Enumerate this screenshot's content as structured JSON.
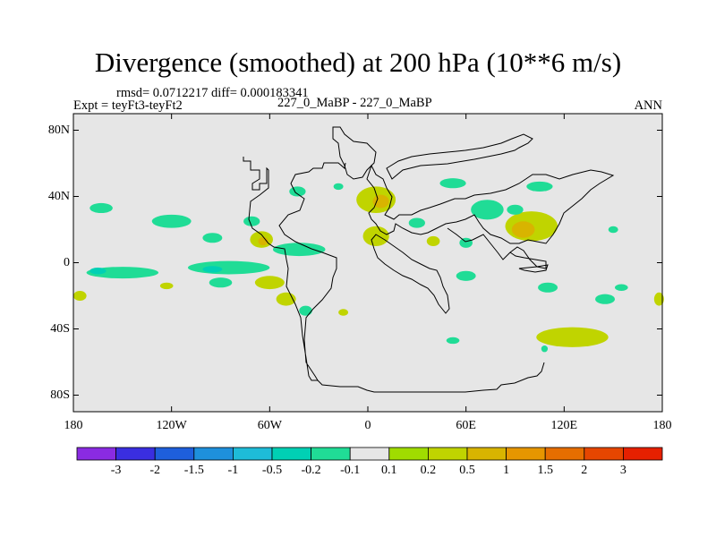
{
  "chart_data": {
    "type": "heatmap",
    "title": "Divergence (smoothed) at 200 hPa (10**6 m/s)",
    "stats": "rmsd= 0.0712217 diff= 0.000183341",
    "experiment": "Expt = teyFt3-teyFt2",
    "case": "227_0_MaBP - 227_0_MaBP",
    "season": "ANN",
    "x_range": [
      -180,
      180
    ],
    "y_range": [
      -90,
      90
    ],
    "x_ticks": [
      {
        "value": -180,
        "label": "180"
      },
      {
        "value": -120,
        "label": "120W"
      },
      {
        "value": -60,
        "label": "60W"
      },
      {
        "value": 0,
        "label": "0"
      },
      {
        "value": 60,
        "label": "60E"
      },
      {
        "value": 120,
        "label": "120E"
      },
      {
        "value": 180,
        "label": "180"
      }
    ],
    "y_ticks": [
      {
        "value": 80,
        "label": "80N"
      },
      {
        "value": 40,
        "label": "40N"
      },
      {
        "value": 0,
        "label": "0"
      },
      {
        "value": -40,
        "label": "40S"
      },
      {
        "value": -80,
        "label": "80S"
      }
    ],
    "background_color": "#e6e6e6",
    "colorbar": {
      "colors": [
        "#8a2be2",
        "#3a2ee0",
        "#1e5fdc",
        "#1e90dc",
        "#1ebcd8",
        "#00d0b4",
        "#20dc96",
        "#e6e6e6",
        "#a0dc00",
        "#c0d400",
        "#d8b400",
        "#e69600",
        "#e66e00",
        "#e64600",
        "#e62000"
      ],
      "labels": [
        "-3",
        "-2",
        "-1.5",
        "-1",
        "-0.5",
        "-0.2",
        "-0.1",
        "0.1",
        "0.2",
        "0.5",
        "1",
        "1.5",
        "2",
        "3"
      ]
    },
    "features": [
      {
        "lon": -120,
        "lat": 25,
        "rx": 12,
        "ry": 4,
        "level": "-0.1"
      },
      {
        "lon": -163,
        "lat": 33,
        "rx": 7,
        "ry": 3,
        "level": "-0.1"
      },
      {
        "lon": -95,
        "lat": 15,
        "rx": 6,
        "ry": 3,
        "level": "-0.1"
      },
      {
        "lon": -65,
        "lat": 14,
        "rx": 7,
        "ry": 5,
        "level": "0.2"
      },
      {
        "lon": -64,
        "lat": 13,
        "rx": 3,
        "ry": 2.5,
        "level": "0.5"
      },
      {
        "lon": -71,
        "lat": 25,
        "rx": 5,
        "ry": 3,
        "level": "-0.1"
      },
      {
        "lon": -42,
        "lat": 8,
        "rx": 16,
        "ry": 4,
        "level": "-0.1"
      },
      {
        "lon": -150,
        "lat": -6,
        "rx": 22,
        "ry": 3.5,
        "level": "-0.1"
      },
      {
        "lon": -85,
        "lat": -3,
        "rx": 25,
        "ry": 4,
        "level": "-0.1"
      },
      {
        "lon": -95,
        "lat": -4,
        "rx": 6,
        "ry": 2,
        "level": "-0.2"
      },
      {
        "lon": -165,
        "lat": -5,
        "rx": 5,
        "ry": 2,
        "level": "-0.2"
      },
      {
        "lon": -60,
        "lat": -12,
        "rx": 9,
        "ry": 4,
        "level": "0.2"
      },
      {
        "lon": -123,
        "lat": -14,
        "rx": 4,
        "ry": 2,
        "level": "0.2"
      },
      {
        "lon": -90,
        "lat": -12,
        "rx": 7,
        "ry": 3,
        "level": "-0.1"
      },
      {
        "lon": -176,
        "lat": -20,
        "rx": 4,
        "ry": 3,
        "level": "0.2"
      },
      {
        "lon": -50,
        "lat": -22,
        "rx": 6,
        "ry": 4,
        "level": "0.2"
      },
      {
        "lon": -38,
        "lat": -29,
        "rx": 4,
        "ry": 3,
        "level": "-0.1"
      },
      {
        "lon": -15,
        "lat": -30,
        "rx": 3,
        "ry": 2,
        "level": "0.2"
      },
      {
        "lon": -43,
        "lat": 43,
        "rx": 5,
        "ry": 3,
        "level": "-0.1"
      },
      {
        "lon": -18,
        "lat": 46,
        "rx": 3,
        "ry": 2,
        "level": "-0.1"
      },
      {
        "lon": 5,
        "lat": 38,
        "rx": 12,
        "ry": 8,
        "level": "0.2"
      },
      {
        "lon": 8,
        "lat": 37,
        "rx": 5,
        "ry": 4,
        "level": "0.5"
      },
      {
        "lon": 5,
        "lat": 16,
        "rx": 8,
        "ry": 6,
        "level": "0.2"
      },
      {
        "lon": 30,
        "lat": 24,
        "rx": 5,
        "ry": 3,
        "level": "-0.1"
      },
      {
        "lon": 52,
        "lat": 48,
        "rx": 8,
        "ry": 3,
        "level": "-0.1"
      },
      {
        "lon": 73,
        "lat": 32,
        "rx": 10,
        "ry": 6,
        "level": "-0.1"
      },
      {
        "lon": 40,
        "lat": 13,
        "rx": 4,
        "ry": 3,
        "level": "0.2"
      },
      {
        "lon": 60,
        "lat": 12,
        "rx": 4,
        "ry": 3,
        "level": "-0.1"
      },
      {
        "lon": 100,
        "lat": 22,
        "rx": 16,
        "ry": 9,
        "level": "0.2"
      },
      {
        "lon": 95,
        "lat": 20,
        "rx": 7,
        "ry": 5,
        "level": "0.5"
      },
      {
        "lon": 105,
        "lat": 46,
        "rx": 8,
        "ry": 3,
        "level": "-0.1"
      },
      {
        "lon": 90,
        "lat": 32,
        "rx": 5,
        "ry": 3,
        "level": "-0.1"
      },
      {
        "lon": 150,
        "lat": 20,
        "rx": 3,
        "ry": 2,
        "level": "-0.1"
      },
      {
        "lon": 60,
        "lat": -8,
        "rx": 6,
        "ry": 3,
        "level": "-0.1"
      },
      {
        "lon": 110,
        "lat": -15,
        "rx": 6,
        "ry": 3,
        "level": "-0.1"
      },
      {
        "lon": 155,
        "lat": -15,
        "rx": 4,
        "ry": 2,
        "level": "-0.1"
      },
      {
        "lon": 145,
        "lat": -22,
        "rx": 6,
        "ry": 3,
        "level": "-0.1"
      },
      {
        "lon": 125,
        "lat": -45,
        "rx": 22,
        "ry": 6,
        "level": "0.2"
      },
      {
        "lon": 178,
        "lat": -22,
        "rx": 3,
        "ry": 4,
        "level": "0.2"
      },
      {
        "lon": 52,
        "lat": -47,
        "rx": 4,
        "ry": 2,
        "level": "-0.1"
      },
      {
        "lon": 108,
        "lat": -52,
        "rx": 2,
        "ry": 2,
        "level": "-0.1"
      }
    ]
  }
}
